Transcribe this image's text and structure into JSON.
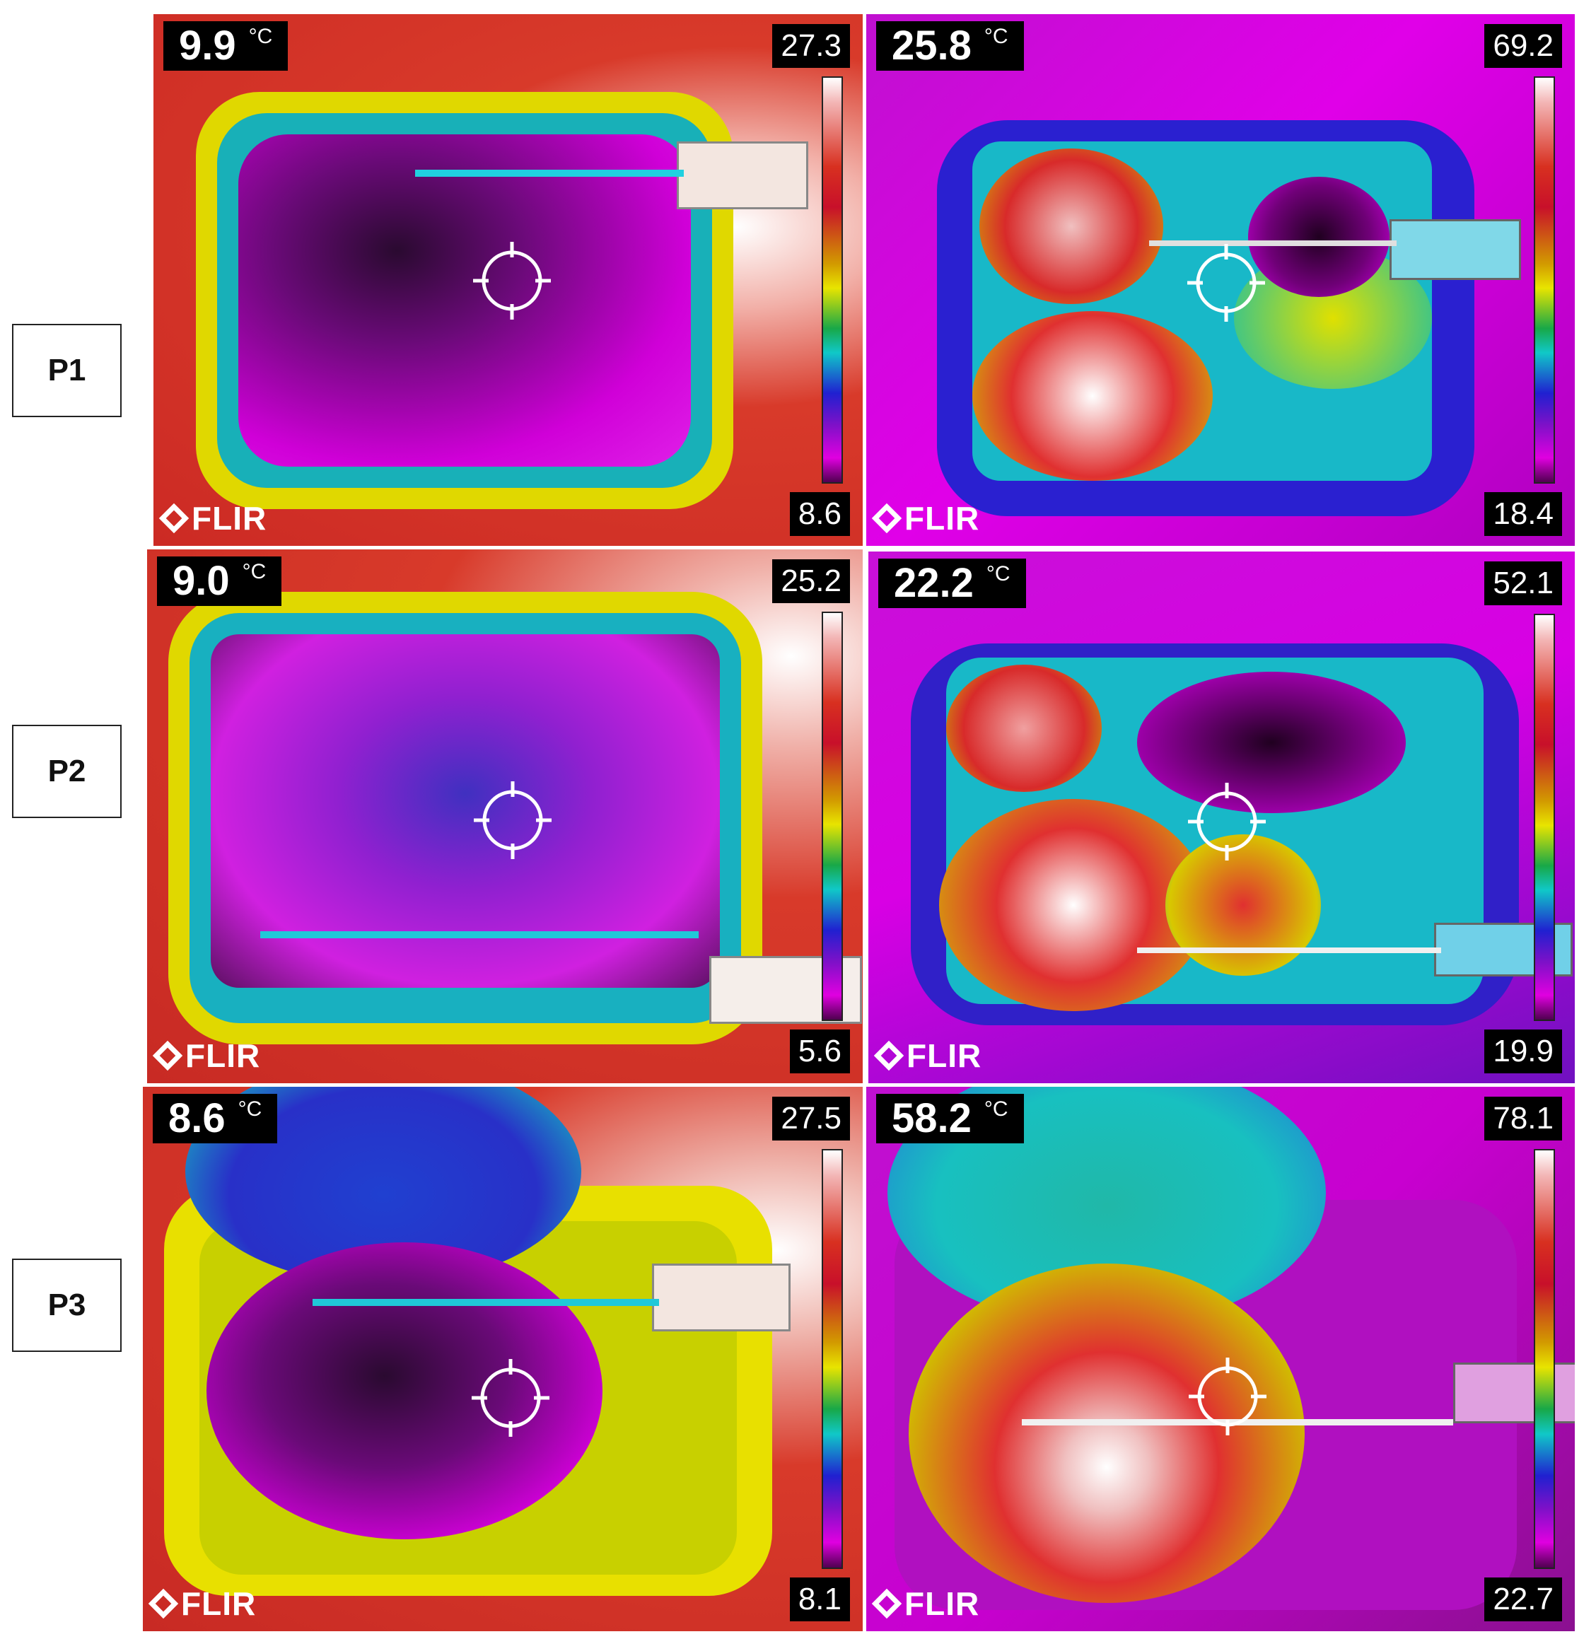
{
  "rows": [
    {
      "label": "P1"
    },
    {
      "label": "P2"
    },
    {
      "label": "P3"
    }
  ],
  "panels": [
    {
      "id": "p1-left",
      "reading": "9.9",
      "unit": "°C",
      "scale_max": "27.3",
      "scale_min": "8.6",
      "brand": "FLIR"
    },
    {
      "id": "p1-right",
      "reading": "25.8",
      "unit": "°C",
      "scale_max": "69.2",
      "scale_min": "18.4",
      "brand": "FLIR"
    },
    {
      "id": "p2-left",
      "reading": "9.0",
      "unit": "°C",
      "scale_max": "25.2",
      "scale_min": "5.6",
      "brand": "FLIR"
    },
    {
      "id": "p2-right",
      "reading": "22.2",
      "unit": "°C",
      "scale_max": "52.1",
      "scale_min": "19.9",
      "brand": "FLIR"
    },
    {
      "id": "p3-left",
      "reading": "8.6",
      "unit": "°C",
      "scale_max": "27.5",
      "scale_min": "8.1",
      "brand": "FLIR"
    },
    {
      "id": "p3-right",
      "reading": "58.2",
      "unit": "°C",
      "scale_max": "78.1",
      "scale_min": "22.7",
      "brand": "FLIR"
    }
  ],
  "icons": {
    "crosshair": "crosshair-icon",
    "logo": "flir-logo-icon"
  },
  "colors": {
    "palette_hot": "#ffffff",
    "palette_warm": "#d83020",
    "palette_mid": "#e8e400",
    "palette_cool": "#10c8c8",
    "palette_cold": "#e000e0",
    "label_border": "#222222"
  }
}
